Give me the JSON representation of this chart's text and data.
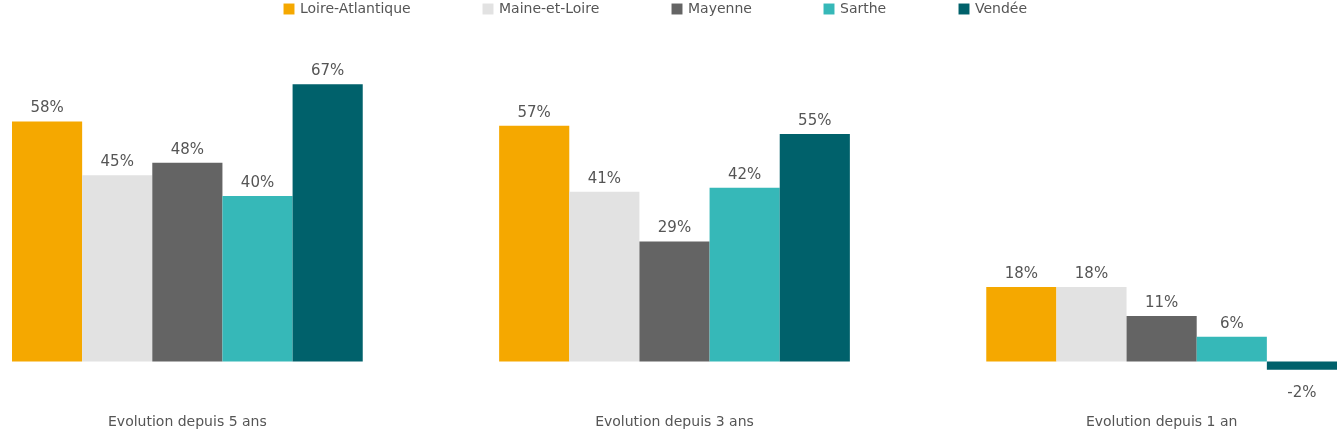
{
  "chart_data": {
    "type": "bar",
    "categories": [
      "Evolution depuis 5 ans",
      "Evolution depuis 3 ans",
      "Evolution depuis 1 an"
    ],
    "series": [
      {
        "name": "Loire-Atlantique",
        "color": "#f5a800",
        "values": [
          58,
          57,
          18
        ],
        "value_labels": [
          "58%",
          "57%",
          "18%"
        ]
      },
      {
        "name": "Maine-et-Loire",
        "color": "#e2e2e2",
        "values": [
          45,
          41,
          18
        ],
        "value_labels": [
          "45%",
          "41%",
          "18%"
        ]
      },
      {
        "name": "Mayenne",
        "color": "#646464",
        "values": [
          48,
          29,
          11
        ],
        "value_labels": [
          "48%",
          "29%",
          "11%"
        ]
      },
      {
        "name": "Sarthe",
        "color": "#36b8b8",
        "values": [
          40,
          42,
          6
        ],
        "value_labels": [
          "40%",
          "42%",
          "6%"
        ]
      },
      {
        "name": "Vendée",
        "color": "#00616b",
        "values": [
          67,
          55,
          -2
        ],
        "value_labels": [
          "67%",
          "55%",
          "-2%"
        ]
      }
    ],
    "legend": "top"
  }
}
